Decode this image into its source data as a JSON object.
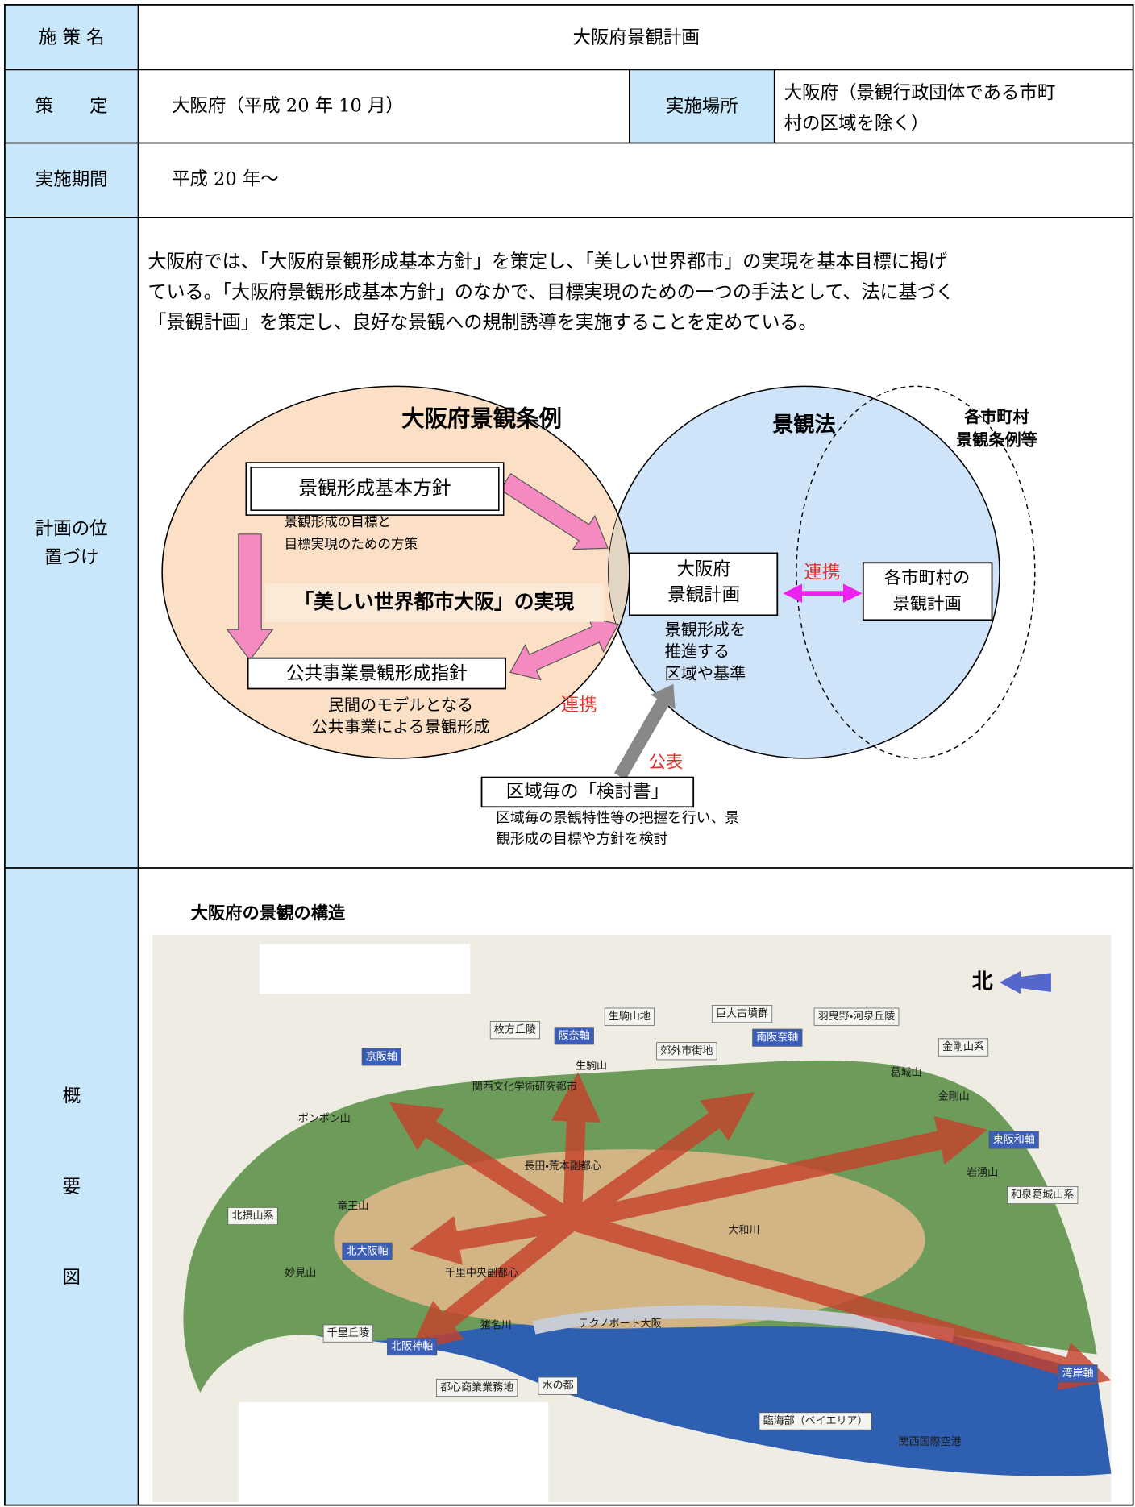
{
  "policy_name": {
    "label": "施 策 名",
    "value": "大阪府景観計画"
  },
  "established": {
    "label": "策　　定",
    "value": "大阪府（平成 20 年 10 月）"
  },
  "location": {
    "label": "実施場所",
    "value_lines": [
      "大阪府（景観行政団体である市町",
      "村の区域を除く）"
    ]
  },
  "period": {
    "label": "実施期間",
    "value": "平成 20 年～"
  },
  "positioning": {
    "label_lines": [
      "計画の位",
      "置づけ"
    ],
    "text_lines": [
      "大阪府では、「大阪府景観形成基本方針」を策定し、「美しい世界都市」の実現を基本目標に掲げ",
      "ている。「大阪府景観形成基本方針」のなかで、目標実現のための一つの手法として、法に基づく",
      "「景観計画」を策定し、良好な景観への規制誘導を実施することを定めている。"
    ],
    "diagram": {
      "ordinance_title": "大阪府景観条例",
      "law_title": "景観法",
      "municipal_title_lines": [
        "各市町村",
        "景観条例等"
      ],
      "basic_policy": "景観形成基本方針",
      "basic_policy_note_lines": [
        "景観形成の目標と",
        "目標実現のための方策"
      ],
      "slogan": "「美しい世界都市大阪」の実現",
      "public_guideline": "公共事業景観形成指針",
      "public_note_lines": [
        "民間のモデルとなる",
        "公共事業による景観形成"
      ],
      "link_public": "連携",
      "plan_lines": [
        "大阪府",
        "景観計画"
      ],
      "plan_note_lines": [
        "景観形成を",
        "推進する",
        "区域や基準"
      ],
      "link_municipal": "連携",
      "municipal_plan_lines": [
        "各市町村の",
        "景観計画"
      ],
      "publish": "公表",
      "study": "区域毎の「検討書」",
      "study_note_lines": [
        "区域毎の景観特性等の把握を行い、景",
        "観形成の目標や方針を検討"
      ]
    }
  },
  "overview": {
    "label_chars": [
      "概",
      "要",
      "図"
    ],
    "map_title": "大阪府の景観の構造",
    "north": "北",
    "map_labels": [
      "枚方丘陵",
      "生駒山地",
      "巨大古墳群",
      "羽曳野・河泉丘陵",
      "金剛山系",
      "郊外市街地",
      "京阪軸",
      "阪奈軸",
      "南阪奈軸",
      "東阪和軸",
      "和泉葛城山系",
      "北摂山系",
      "北大阪軸",
      "千里丘陵",
      "北阪神軸",
      "都心商業業務地",
      "水の都",
      "臨海部（ベイエリア）",
      "湾岸軸",
      "関西国際空港",
      "ポンポン山",
      "竜王山",
      "妙見山",
      "生駒山",
      "葛城山",
      "金剛山",
      "岩湧山",
      "長田・荒本副都心",
      "千里中央副都心",
      "猪名川",
      "大和川",
      "テクノポート大阪",
      "関西文化学術研究都市"
    ]
  }
}
